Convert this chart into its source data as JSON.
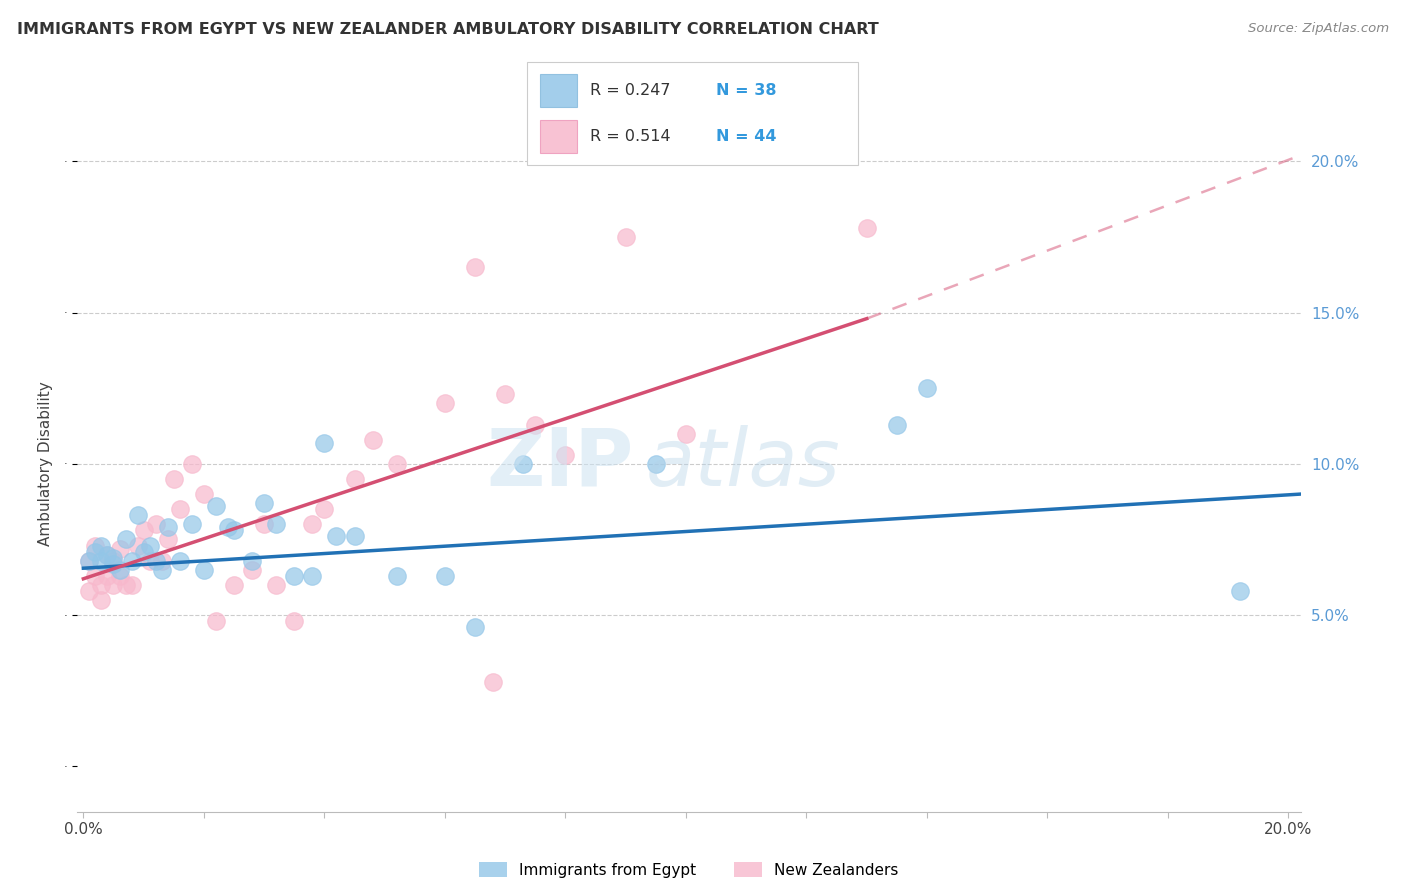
{
  "title": "IMMIGRANTS FROM EGYPT VS NEW ZEALANDER AMBULATORY DISABILITY CORRELATION CHART",
  "source": "Source: ZipAtlas.com",
  "ylabel": "Ambulatory Disability",
  "legend_label_blue": "Immigrants from Egypt",
  "legend_label_pink": "New Zealanders",
  "r_blue": 0.247,
  "n_blue": 38,
  "r_pink": 0.514,
  "n_pink": 44,
  "xlim": [
    -0.001,
    0.202
  ],
  "ylim": [
    -0.015,
    0.215
  ],
  "yticks": [
    0.05,
    0.1,
    0.15,
    0.2
  ],
  "ytick_labels": [
    "5.0%",
    "10.0%",
    "15.0%",
    "20.0%"
  ],
  "xticks": [
    0.0,
    0.02,
    0.04,
    0.06,
    0.08,
    0.1,
    0.12,
    0.14,
    0.16,
    0.18,
    0.2
  ],
  "color_blue": "#93c6e8",
  "color_pink": "#f7b8cc",
  "line_blue": "#2171b5",
  "line_pink": "#d44f72",
  "grid_color": "#cccccc",
  "background": "#ffffff",
  "blue_line_x0": 0.0,
  "blue_line_y0": 0.0655,
  "blue_line_x1": 0.202,
  "blue_line_y1": 0.09,
  "pink_line_x0": 0.0,
  "pink_line_y0": 0.062,
  "pink_line_solid_x1": 0.13,
  "pink_line_solid_y1": 0.148,
  "pink_line_dash_x1": 0.202,
  "pink_line_dash_y1": 0.202,
  "blue_x": [
    0.001,
    0.002,
    0.003,
    0.003,
    0.004,
    0.005,
    0.005,
    0.006,
    0.007,
    0.008,
    0.009,
    0.01,
    0.011,
    0.012,
    0.013,
    0.014,
    0.016,
    0.018,
    0.02,
    0.022,
    0.024,
    0.025,
    0.028,
    0.03,
    0.032,
    0.035,
    0.038,
    0.04,
    0.042,
    0.045,
    0.052,
    0.06,
    0.065,
    0.073,
    0.095,
    0.135,
    0.14,
    0.192
  ],
  "blue_y": [
    0.068,
    0.071,
    0.068,
    0.073,
    0.07,
    0.067,
    0.069,
    0.065,
    0.075,
    0.068,
    0.083,
    0.071,
    0.073,
    0.068,
    0.065,
    0.079,
    0.068,
    0.08,
    0.065,
    0.086,
    0.079,
    0.078,
    0.068,
    0.087,
    0.08,
    0.063,
    0.063,
    0.107,
    0.076,
    0.076,
    0.063,
    0.063,
    0.046,
    0.1,
    0.1,
    0.113,
    0.125,
    0.058
  ],
  "pink_x": [
    0.001,
    0.001,
    0.002,
    0.002,
    0.003,
    0.003,
    0.004,
    0.004,
    0.005,
    0.005,
    0.006,
    0.006,
    0.007,
    0.008,
    0.009,
    0.01,
    0.011,
    0.012,
    0.013,
    0.014,
    0.015,
    0.016,
    0.018,
    0.02,
    0.022,
    0.025,
    0.028,
    0.03,
    0.032,
    0.035,
    0.038,
    0.04,
    0.045,
    0.048,
    0.052,
    0.06,
    0.065,
    0.068,
    0.07,
    0.075,
    0.08,
    0.09,
    0.1,
    0.13
  ],
  "pink_y": [
    0.068,
    0.058,
    0.063,
    0.073,
    0.06,
    0.055,
    0.07,
    0.063,
    0.06,
    0.068,
    0.063,
    0.072,
    0.06,
    0.06,
    0.073,
    0.078,
    0.068,
    0.08,
    0.068,
    0.075,
    0.095,
    0.085,
    0.1,
    0.09,
    0.048,
    0.06,
    0.065,
    0.08,
    0.06,
    0.048,
    0.08,
    0.085,
    0.095,
    0.108,
    0.1,
    0.12,
    0.165,
    0.028,
    0.123,
    0.113,
    0.103,
    0.175,
    0.11,
    0.178
  ]
}
